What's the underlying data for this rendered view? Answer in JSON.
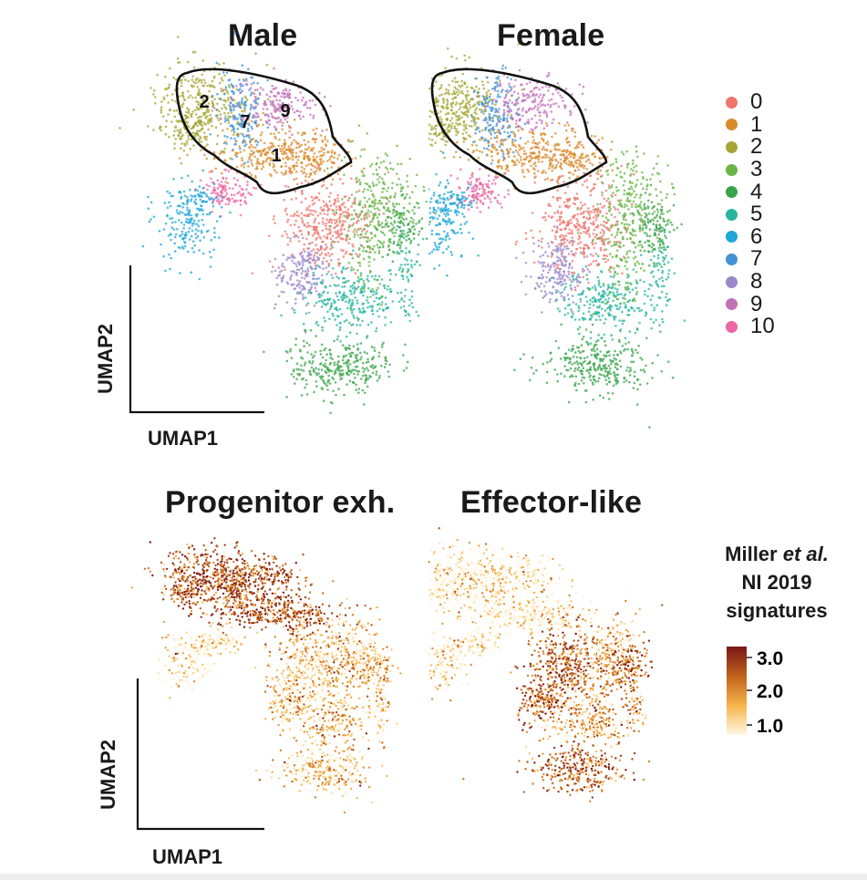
{
  "chart_data": [
    {
      "type": "scatter",
      "title": "Male",
      "xlabel": "UMAP1",
      "ylabel": "UMAP2",
      "grid": false,
      "color_by": "cluster",
      "highlighted_clusters": [
        "1",
        "2",
        "7",
        "9"
      ],
      "cluster_labels_on_plot": [
        "2",
        "7",
        "9",
        "1"
      ]
    },
    {
      "type": "scatter",
      "title": "Female",
      "grid": false,
      "color_by": "cluster",
      "highlighted_clusters": [
        "1",
        "2",
        "7",
        "9"
      ]
    },
    {
      "type": "scatter",
      "title": "Progenitor exh.",
      "xlabel": "UMAP1",
      "ylabel": "UMAP2",
      "grid": false,
      "color_by": "signature score"
    },
    {
      "type": "scatter",
      "title": "Effector-like",
      "grid": false,
      "color_by": "signature score"
    }
  ],
  "cluster_legend": {
    "placement": "right",
    "items": [
      {
        "label": "0",
        "color": "#ef766d"
      },
      {
        "label": "1",
        "color": "#d98b2b"
      },
      {
        "label": "2",
        "color": "#a6a636"
      },
      {
        "label": "3",
        "color": "#69b546"
      },
      {
        "label": "4",
        "color": "#3ba44b"
      },
      {
        "label": "5",
        "color": "#28b4a0"
      },
      {
        "label": "6",
        "color": "#1fa7d6"
      },
      {
        "label": "7",
        "color": "#4293d4"
      },
      {
        "label": "8",
        "color": "#9a88c9"
      },
      {
        "label": "9",
        "color": "#c171b8"
      },
      {
        "label": "10",
        "color": "#ec67a6"
      }
    ]
  },
  "colorbar": {
    "title_line1_pre": "Miller ",
    "title_line1_em": "et al.",
    "title_line2": "NI 2019",
    "title_line3": "signatures",
    "ticks": [
      "3.0",
      "2.0",
      "1.0"
    ],
    "range": [
      1.0,
      3.0
    ],
    "colors": [
      "#fff8e6",
      "#f6b54a",
      "#c1611c",
      "#7a1616"
    ]
  }
}
